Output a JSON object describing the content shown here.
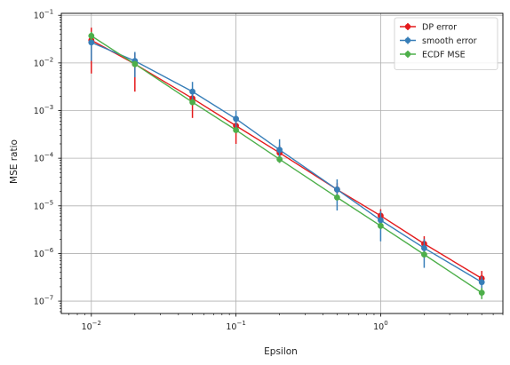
{
  "chart_data": {
    "type": "line",
    "title": "",
    "xlabel": "Epsilon",
    "ylabel": "MSE ratio",
    "xscale": "log",
    "yscale": "log",
    "xlim": [
      0.0062,
      7.0
    ],
    "ylim": [
      5.5e-08,
      0.11
    ],
    "grid": true,
    "legend_position": "top-right",
    "x_ticks": [
      {
        "value": 0.01,
        "base": "10",
        "exp": "−2"
      },
      {
        "value": 0.1,
        "base": "10",
        "exp": "−1"
      },
      {
        "value": 1,
        "base": "10",
        "exp": "0"
      }
    ],
    "y_ticks": [
      {
        "value": 1e-07,
        "base": "10",
        "exp": "−7"
      },
      {
        "value": 1e-06,
        "base": "10",
        "exp": "−6"
      },
      {
        "value": 1e-05,
        "base": "10",
        "exp": "−5"
      },
      {
        "value": 0.0001,
        "base": "10",
        "exp": "−4"
      },
      {
        "value": 0.001,
        "base": "10",
        "exp": "−3"
      },
      {
        "value": 0.01,
        "base": "10",
        "exp": "−2"
      },
      {
        "value": 0.1,
        "base": "10",
        "exp": "−1"
      }
    ],
    "x": [
      0.01,
      0.02,
      0.05,
      0.1,
      0.2,
      0.5,
      1,
      2,
      5
    ],
    "series": [
      {
        "name": "DP error",
        "color": "#e41a1c",
        "values": [
          0.03,
          0.0095,
          0.0018,
          0.00048,
          0.00013,
          2.2e-05,
          6.2e-06,
          1.6e-06,
          3e-07
        ],
        "err_low": [
          0.006,
          0.0025,
          0.0007,
          0.0002,
          8e-05,
          1.3e-05,
          4e-06,
          1.1e-06,
          2.2e-07
        ],
        "err_high": [
          0.055,
          0.016,
          0.0026,
          0.00075,
          0.00019,
          3e-05,
          8.5e-06,
          2.3e-06,
          4.3e-07
        ]
      },
      {
        "name": "smooth error",
        "color": "#377eb8",
        "values": [
          0.027,
          0.011,
          0.0025,
          0.00067,
          0.00015,
          2.2e-05,
          5e-06,
          1.3e-06,
          2.5e-07
        ],
        "err_low": [
          0.011,
          0.005,
          0.0013,
          0.0004,
          8e-05,
          8e-06,
          1.8e-06,
          5e-07,
          1.6e-07
        ],
        "err_high": [
          0.04,
          0.017,
          0.004,
          0.001,
          0.00025,
          3.6e-05,
          7.8e-06,
          2e-06,
          3.3e-07
        ]
      },
      {
        "name": "ECDF MSE",
        "color": "#4daf4a",
        "values": [
          0.037,
          0.0095,
          0.0015,
          0.00039,
          9.5e-05,
          1.5e-05,
          3.8e-06,
          9.5e-07,
          1.5e-07
        ],
        "err_low": [
          0.03,
          0.008,
          0.0013,
          0.00035,
          8e-05,
          1.3e-05,
          3.4e-06,
          8.5e-07,
          1.1e-07
        ],
        "err_high": [
          0.045,
          0.011,
          0.0017,
          0.00044,
          0.00011,
          1.7e-05,
          4.2e-06,
          1.1e-06,
          1.9e-07
        ]
      }
    ]
  }
}
